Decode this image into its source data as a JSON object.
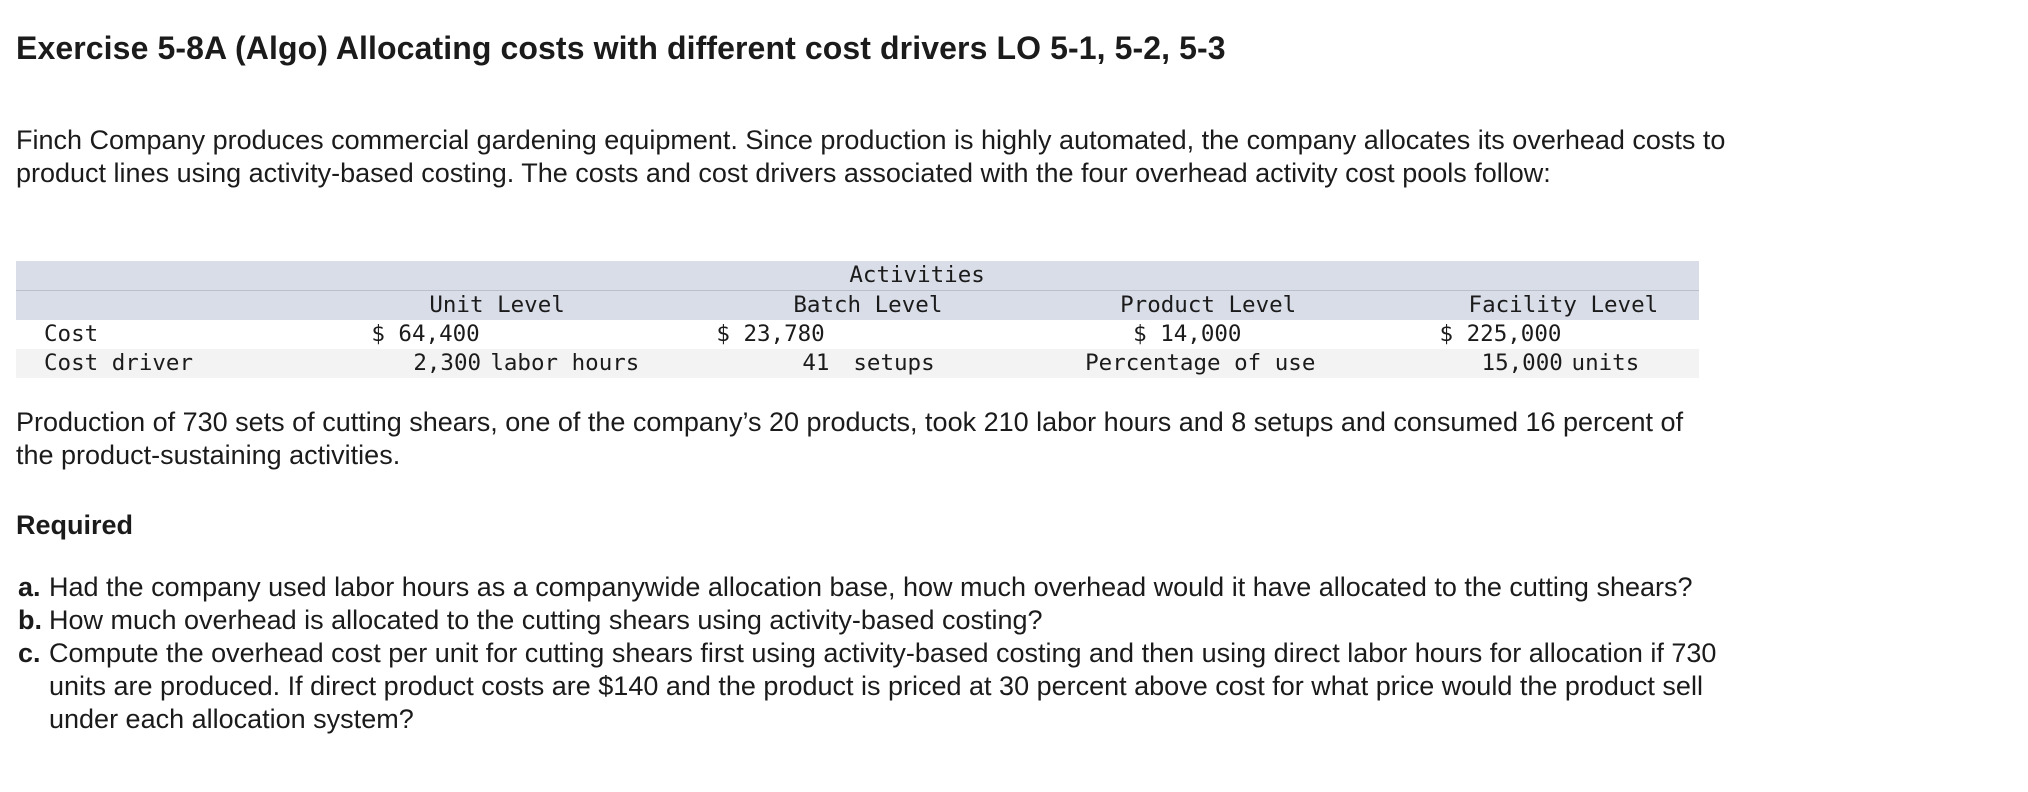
{
  "title": "Exercise 5-8A (Algo) Allocating costs with different cost drivers LO 5-1, 5-2, 5-3",
  "intro": "Finch Company produces commercial gardening equipment. Since production is highly automated, the company allocates its overhead costs to product lines using activity-based costing. The costs and cost drivers associated with the four overhead activity cost pools follow:",
  "table": {
    "group_header": "Activities",
    "columns": [
      "Unit Level",
      "Batch Level",
      "Product Level",
      "Facility Level"
    ],
    "rows": {
      "cost": {
        "label": "Cost",
        "unit": "$ 64,400",
        "batch": "$ 23,780",
        "product": "$ 14,000",
        "facility": "$ 225,000"
      },
      "driver": {
        "label": "Cost driver",
        "unit_amount": "2,300",
        "unit_measure": "labor hours",
        "batch_amount": "41",
        "batch_measure": "setups",
        "product": "Percentage of use",
        "facility_amount": "15,000",
        "facility_measure": "units"
      }
    }
  },
  "production": "Production of 730 sets of cutting shears, one of the company’s 20 products, took 210 labor hours and 8 setups and consumed 16 percent of the product-sustaining activities.",
  "required_heading": "Required",
  "questions": [
    {
      "letter": "a.",
      "text": "Had the company used labor hours as a companywide allocation base, how much overhead would it have allocated to the cutting shears?"
    },
    {
      "letter": "b.",
      "text": "How much overhead is allocated to the cutting shears using activity-based costing?"
    },
    {
      "letter": "c.",
      "text": "Compute the overhead cost per unit for cutting shears first using activity-based costing and then using direct labor hours for allocation if 730 units are produced. If direct product costs are $140 and the product is priced at 30 percent above cost for what price would the product sell under each allocation system?"
    }
  ]
}
